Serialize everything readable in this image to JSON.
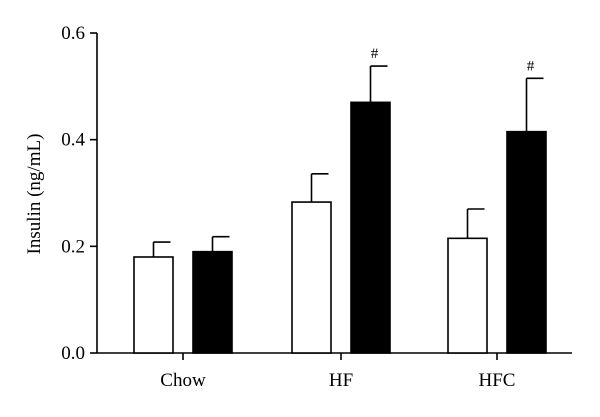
{
  "chart_data": {
    "type": "bar",
    "title": "",
    "xlabel": "",
    "ylabel": "Insulin (ng/mL)",
    "ylim": [
      0,
      0.6
    ],
    "y_ticks": [
      "0.0",
      "0.2",
      "0.4",
      "0.6"
    ],
    "y_tick_values": [
      0.0,
      0.2,
      0.4,
      0.6
    ],
    "categories": [
      "Chow",
      "HF",
      "HFC"
    ],
    "grid": false,
    "series": [
      {
        "fill": "#ffffff",
        "values": [
          0.18,
          0.283,
          0.215
        ],
        "errors": [
          0.028,
          0.053,
          0.055
        ],
        "annotations": [
          "",
          "",
          ""
        ]
      },
      {
        "fill": "#000000",
        "values": [
          0.19,
          0.47,
          0.415
        ],
        "errors": [
          0.028,
          0.068,
          0.1
        ],
        "annotations": [
          "",
          "#",
          "#"
        ]
      }
    ]
  }
}
